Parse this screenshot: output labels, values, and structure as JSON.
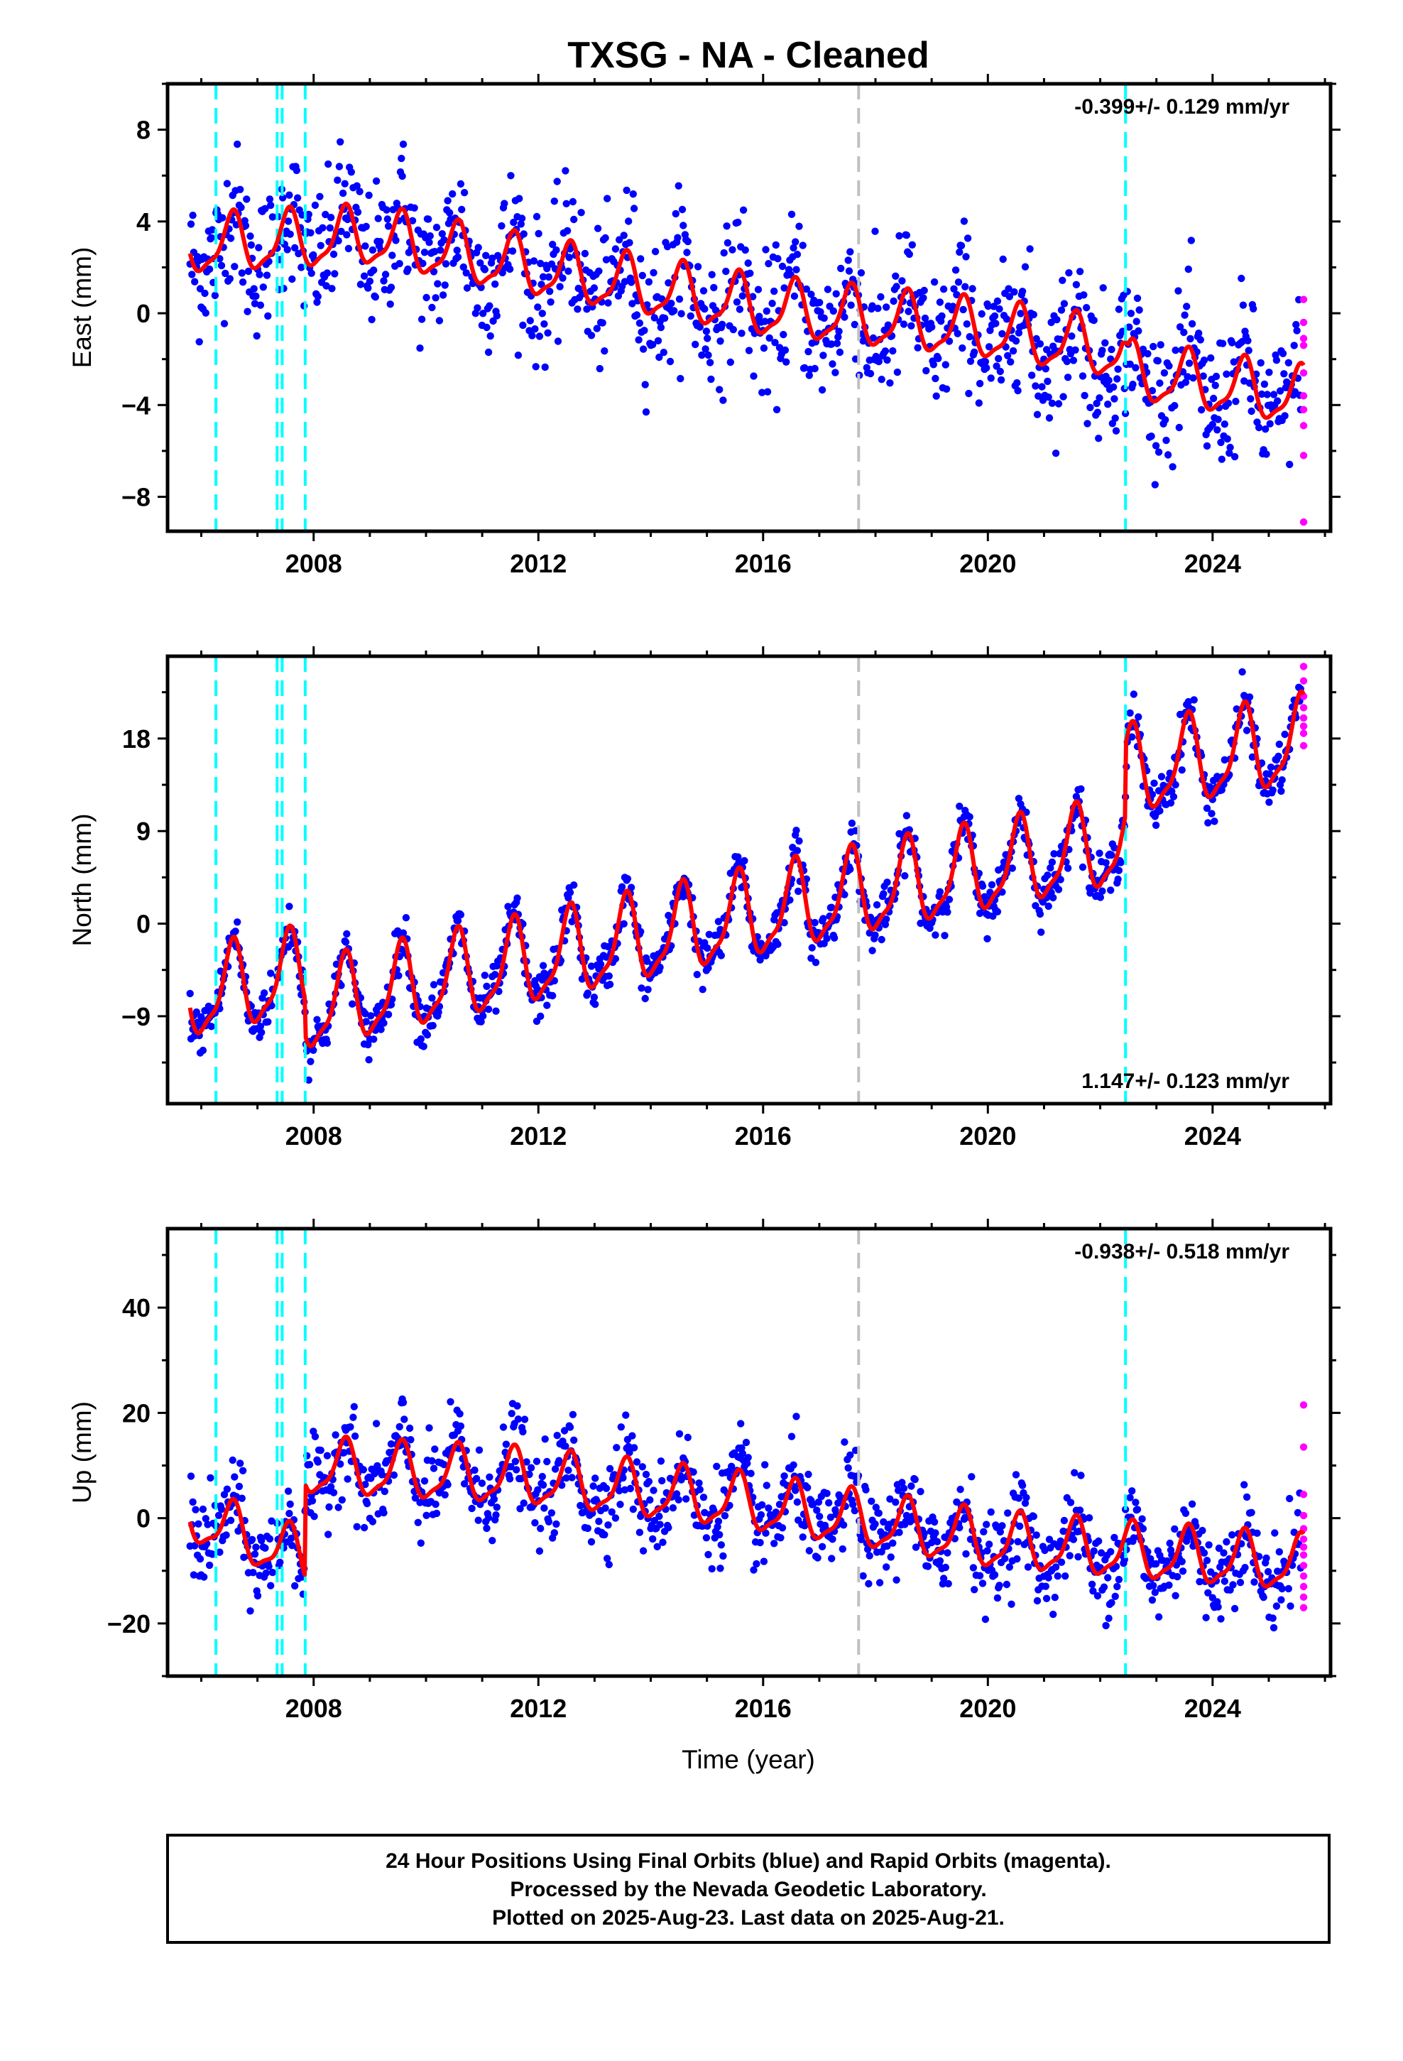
{
  "title": "TXSG  - NA - Cleaned",
  "xlabel": "Time (year)",
  "x_ticks": [
    "2008",
    "2012",
    "2016",
    "2020",
    "2024"
  ],
  "colors": {
    "final": "#0000ff",
    "rapid": "#ff00ff",
    "model": "#ff0000",
    "offset": "#00ffff",
    "event": "#c0c0c0"
  },
  "footer": {
    "line1": "24 Hour Positions Using Final Orbits (blue) and Rapid Orbits (magenta).",
    "line2": "Processed by the Nevada Geodetic Laboratory.",
    "line3": "Plotted on 2025-Aug-23. Last data on 2025-Aug-21."
  },
  "chart_data": [
    {
      "type": "scatter",
      "component": "East",
      "ylabel": "East (mm)",
      "rate_label": "-0.399+/- 0.129 mm/yr",
      "xlim": [
        2005.4,
        2026.1
      ],
      "ylim": [
        -9.5,
        10
      ],
      "y_ticks": [
        8,
        4,
        0,
        -4,
        -8
      ],
      "offset_lines": [
        2006.26,
        2007.35,
        2007.44,
        2007.85,
        2022.45
      ],
      "event_lines": [
        2017.7
      ],
      "model_trend": [
        {
          "x": 2005.8,
          "y": 2.9
        },
        {
          "x": 2009.0,
          "y": 3.3
        },
        {
          "x": 2012.0,
          "y": 1.9
        },
        {
          "x": 2016.0,
          "y": 0.2
        },
        {
          "x": 2020.0,
          "y": -0.8
        },
        {
          "x": 2022.4,
          "y": -1.7
        },
        {
          "x": 2022.5,
          "y": -2.6
        },
        {
          "x": 2025.6,
          "y": -3.7
        }
      ],
      "seasonal_amplitude": 1.2,
      "scatter_sd": 1.5,
      "rapid_points_y": [
        0.6,
        -0.4,
        -1.1,
        -1.4,
        -2.6,
        -3.6,
        -4.2,
        -4.9,
        -6.2,
        -9.1
      ]
    },
    {
      "type": "scatter",
      "component": "North",
      "ylabel": "North (mm)",
      "rate_label": "1.147+/- 0.123 mm/yr",
      "xlim": [
        2005.4,
        2026.1
      ],
      "ylim": [
        -17.5,
        26
      ],
      "y_ticks": [
        18,
        9,
        0,
        -9
      ],
      "offset_lines": [
        2006.26,
        2007.35,
        2007.44,
        2007.85,
        2022.45
      ],
      "event_lines": [
        2017.7
      ],
      "model_trend": [
        {
          "x": 2005.8,
          "y": -7.2
        },
        {
          "x": 2007.84,
          "y": -5.0
        },
        {
          "x": 2007.86,
          "y": -8.4
        },
        {
          "x": 2017.7,
          "y": 2.8
        },
        {
          "x": 2022.44,
          "y": 7.7
        },
        {
          "x": 2022.46,
          "y": 14.5
        },
        {
          "x": 2025.6,
          "y": 17.5
        }
      ],
      "seasonal_amplitude": 4.0,
      "scatter_sd": 1.2,
      "rapid_points_y": [
        25.0,
        23.6,
        22.1,
        21.0,
        20.0,
        19.2,
        18.5,
        17.3
      ]
    },
    {
      "type": "scatter",
      "component": "Up",
      "ylabel": "Up (mm)",
      "rate_label": "-0.938+/- 0.518 mm/yr",
      "xlim": [
        2005.4,
        2026.1
      ],
      "ylim": [
        -30,
        55
      ],
      "y_ticks": [
        40,
        20,
        0,
        -20
      ],
      "offset_lines": [
        2006.26,
        2007.35,
        2007.44,
        2007.85,
        2022.45
      ],
      "event_lines": [
        2017.7
      ],
      "model_trend": [
        {
          "x": 2005.8,
          "y": 0.5
        },
        {
          "x": 2007.84,
          "y": -8.0
        },
        {
          "x": 2007.86,
          "y": 9.5
        },
        {
          "x": 2011.8,
          "y": 7.5
        },
        {
          "x": 2015.5,
          "y": 3.0
        },
        {
          "x": 2017.7,
          "y": -0.5
        },
        {
          "x": 2020.0,
          "y": -4.5
        },
        {
          "x": 2025.6,
          "y": -9.0
        }
      ],
      "seasonal_amplitude": 5.0,
      "scatter_sd": 4.2,
      "rapid_points_y": [
        21.5,
        13.5,
        4.5,
        0.5,
        -2.0,
        -4.0,
        -5.5,
        -7.0,
        -9.0,
        -11.0,
        -13.0,
        -15.0,
        -17.0
      ]
    }
  ]
}
